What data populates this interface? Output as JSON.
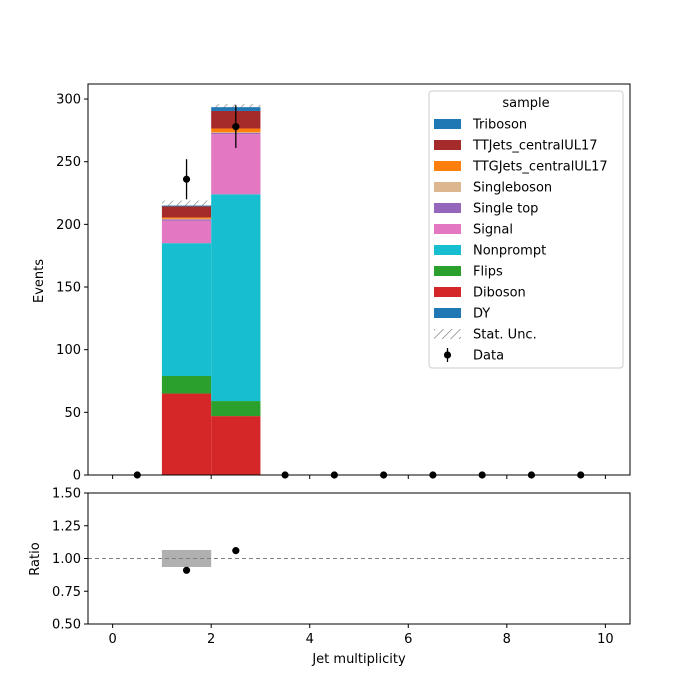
{
  "chart_data": [
    {
      "type": "bar",
      "panel": "main",
      "stacked": true,
      "ylabel": "Events",
      "xlim": [
        -0.5,
        10.5
      ],
      "ylim": [
        0,
        312
      ],
      "yticks": [
        0,
        50,
        100,
        150,
        200,
        250,
        300
      ],
      "bin_edges": [
        1,
        2,
        3
      ],
      "series": [
        {
          "name": "Diboson",
          "color": "#d62728",
          "values": [
            65,
            47
          ]
        },
        {
          "name": "Flips",
          "color": "#2ca02c",
          "values": [
            14,
            12
          ]
        },
        {
          "name": "Nonprompt",
          "color": "#17becf",
          "values": [
            106,
            165
          ]
        },
        {
          "name": "Signal",
          "color": "#e377c2",
          "values": [
            18,
            48
          ]
        },
        {
          "name": "Single top",
          "color": "#9467bd",
          "values": [
            1,
            1
          ]
        },
        {
          "name": "Singleboson",
          "color": "#dbb68e",
          "values": [
            0.5,
            0.5
          ]
        },
        {
          "name": "TTGJets_centralUL17",
          "color": "#ff7f0e",
          "values": [
            1,
            3
          ]
        },
        {
          "name": "TTJets_centralUL17",
          "color": "#a52a2a",
          "values": [
            9,
            14
          ]
        },
        {
          "name": "Triboson",
          "color": "#1f77b4",
          "values": [
            0.5,
            3
          ]
        },
        {
          "name": "DY",
          "color": "#1f77b4",
          "values": [
            0,
            0
          ]
        }
      ],
      "stat_unc": {
        "name": "Stat. Unc.",
        "bins": [
          {
            "low": 215,
            "high": 219
          },
          {
            "low": 293,
            "high": 296
          }
        ]
      },
      "data": {
        "name": "Data",
        "x": [
          0.5,
          1.5,
          2.5,
          3.5,
          4.5,
          5.5,
          6.5,
          7.5,
          8.5,
          9.5
        ],
        "y": [
          0,
          236,
          278,
          0,
          0,
          0,
          0,
          0,
          0,
          0
        ],
        "err": [
          0,
          16,
          17,
          0,
          0,
          0,
          0,
          0,
          0,
          0
        ]
      },
      "legend": {
        "title": "sample",
        "placement": "upper right",
        "entries": [
          "Triboson",
          "TTJets_centralUL17",
          "TTGJets_centralUL17",
          "Singleboson",
          "Single top",
          "Signal",
          "Nonprompt",
          "Flips",
          "Diboson",
          "DY",
          "Stat. Unc.",
          "Data"
        ]
      }
    },
    {
      "type": "scatter",
      "panel": "ratio",
      "xlabel": "Jet multiplicity",
      "ylabel": "Ratio",
      "xlim": [
        -0.5,
        10.5
      ],
      "ylim": [
        0.5,
        1.5
      ],
      "xticks": [
        0,
        2,
        4,
        6,
        8,
        10
      ],
      "yticks": [
        "0.50",
        "0.75",
        "1.00",
        "1.25",
        "1.50"
      ],
      "reference_line": 1.0,
      "x": [
        1.5,
        2.5
      ],
      "y": [
        0.91,
        1.06
      ],
      "unc_band": [
        {
          "x0": 1,
          "x1": 2,
          "low": 0.935,
          "high": 1.065
        }
      ]
    }
  ],
  "colors": {
    "data": "#000000",
    "band": "#b0b0b0",
    "hatch": "#707070"
  }
}
